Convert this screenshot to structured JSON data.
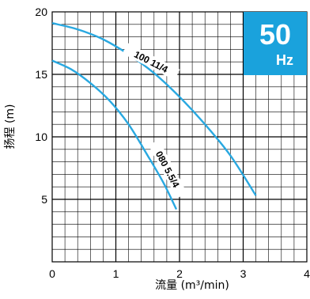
{
  "chart_data": {
    "type": "line",
    "xlabel": "流量 (m³/min)",
    "ylabel": "扬程 (m)",
    "xlim": [
      0,
      4
    ],
    "ylim": [
      0,
      20
    ],
    "x_ticks": [
      "0",
      "1",
      "2",
      "3",
      "4"
    ],
    "y_ticks": [
      "5",
      "10",
      "15",
      "20"
    ],
    "grid": true,
    "series": [
      {
        "name": "100 11/4",
        "color": "#29a8e0",
        "x": [
          0.0,
          0.4,
          0.8,
          1.2,
          1.6,
          2.0,
          2.4,
          2.8,
          3.2
        ],
        "y": [
          19.1,
          18.6,
          17.8,
          16.6,
          15.1,
          13.2,
          11.0,
          8.5,
          5.3
        ]
      },
      {
        "name": "080 5.5/4",
        "color": "#29a8e0",
        "x": [
          0.0,
          0.3,
          0.6,
          0.9,
          1.2,
          1.5,
          1.75,
          1.95
        ],
        "y": [
          16.1,
          15.4,
          14.3,
          12.9,
          11.0,
          8.5,
          6.3,
          4.2
        ]
      }
    ],
    "badge": {
      "number": "50",
      "unit": "Hz",
      "color": "#1aa2dc"
    }
  }
}
